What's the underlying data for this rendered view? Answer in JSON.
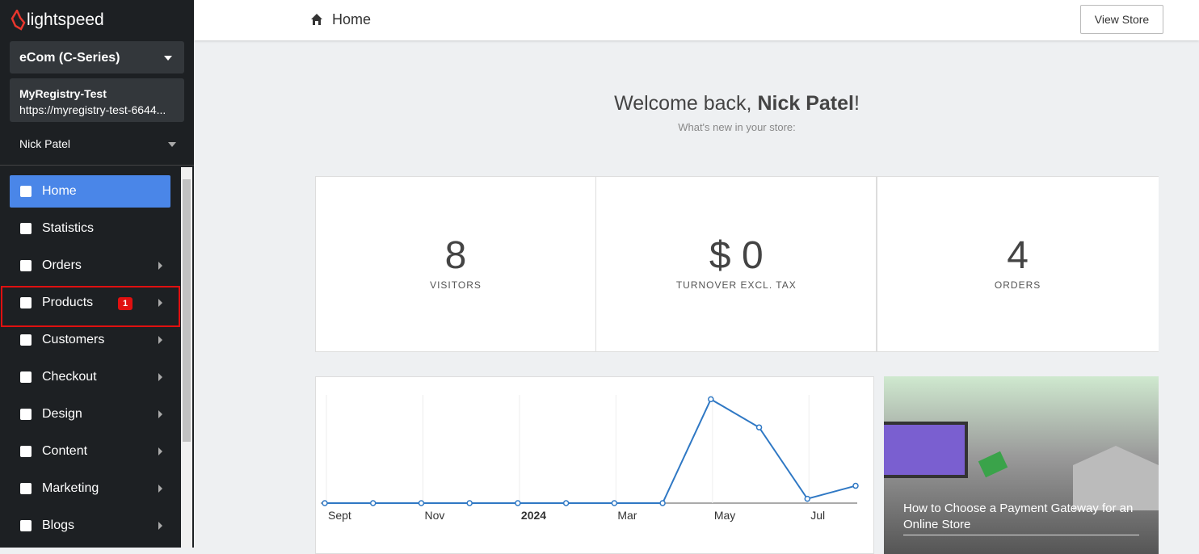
{
  "sidebar": {
    "brand": "lightspeed",
    "store_selector": "eCom (C-Series)",
    "store_name": "MyRegistry-Test",
    "store_url": "https://myregistry-test-6644...",
    "user": "Nick Patel",
    "menu": [
      {
        "label": "Home"
      },
      {
        "label": "Statistics"
      },
      {
        "label": "Orders"
      },
      {
        "label": "Products",
        "badge": "1"
      },
      {
        "label": "Customers"
      },
      {
        "label": "Checkout"
      },
      {
        "label": "Design"
      },
      {
        "label": "Content"
      },
      {
        "label": "Marketing"
      },
      {
        "label": "Blogs"
      }
    ]
  },
  "header": {
    "title": "Home",
    "view_store": "View Store"
  },
  "welcome": {
    "greeting": "Welcome back, ",
    "name": "Nick Patel",
    "punct": "!",
    "subtitle": "What's new in your store:"
  },
  "stats": [
    {
      "value": "8",
      "label": "VISITORS"
    },
    {
      "value": "$ 0",
      "label": "TURNOVER EXCL. TAX"
    },
    {
      "value": "4",
      "label": "ORDERS"
    }
  ],
  "chart_data": {
    "type": "line",
    "categories": [
      "Sept",
      null,
      "Nov",
      null,
      "2024",
      null,
      "Mar",
      null,
      "May",
      null,
      "Jul",
      null
    ],
    "series": [
      {
        "color": "#2f78c4",
        "values": [
          0,
          0,
          0,
          0,
          0,
          0,
          0,
          0,
          24,
          17.5,
          1,
          4
        ]
      }
    ],
    "ylim": [
      0,
      25
    ]
  },
  "article": {
    "title": "How to Choose a Payment Gateway for an Online Store"
  }
}
